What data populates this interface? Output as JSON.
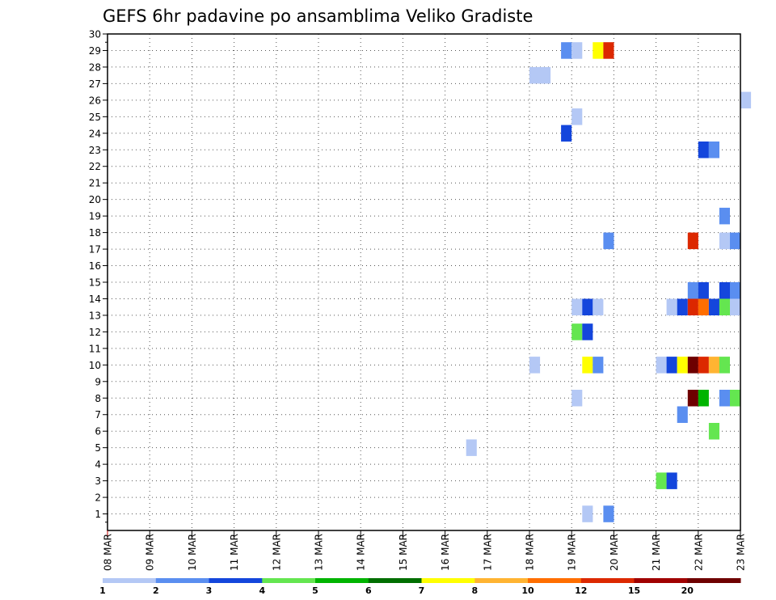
{
  "chart_data": {
    "type": "heatmap",
    "title": "GEFS 6hr padavine po ansamblima Veliko Gradiste",
    "xlabel": "",
    "ylabel": "",
    "x_range": [
      "08 MAR",
      "23 MAR"
    ],
    "x_step_hours": 6,
    "x_tick_labels": [
      "08 MAR",
      "09 MAR",
      "10 MAR",
      "11 MAR",
      "12 MAR",
      "13 MAR",
      "14 MAR",
      "15 MAR",
      "16 MAR",
      "17 MAR",
      "18 MAR",
      "19 MAR",
      "20 MAR",
      "21 MAR",
      "22 MAR",
      "23 MAR"
    ],
    "y_range": [
      0,
      30
    ],
    "y_tick_labels": [
      "1",
      "2",
      "3",
      "4",
      "5",
      "6",
      "7",
      "8",
      "9",
      "10",
      "11",
      "12",
      "13",
      "14",
      "15",
      "16",
      "17",
      "18",
      "19",
      "20",
      "21",
      "22",
      "23",
      "24",
      "25",
      "26",
      "27",
      "28",
      "29",
      "30"
    ],
    "grid": true,
    "colorbar": {
      "levels": [
        "1",
        "2",
        "3",
        "4",
        "5",
        "6",
        "7",
        "8",
        "10",
        "12",
        "15",
        "20"
      ],
      "colors": [
        "#b4c8f5",
        "#5a8ef0",
        "#1446dc",
        "#64e650",
        "#00b400",
        "#006e00",
        "#ffff00",
        "#ffb432",
        "#ff6e00",
        "#dc2800",
        "#a00000",
        "#6e0000"
      ]
    },
    "cells": [
      {
        "day": "18 MAR",
        "hour": 0,
        "member": 27.5,
        "bin": 0
      },
      {
        "day": "18 MAR",
        "hour": 6,
        "member": 27.5,
        "bin": 0
      },
      {
        "day": "18 MAR",
        "hour": 0,
        "member": 10,
        "bin": 0
      },
      {
        "day": "16 MAR",
        "hour": 12,
        "member": 5,
        "bin": 0
      },
      {
        "day": "18 MAR",
        "hour": 18,
        "member": 29,
        "bin": 1
      },
      {
        "day": "19 MAR",
        "hour": 0,
        "member": 29,
        "bin": 0
      },
      {
        "day": "19 MAR",
        "hour": 12,
        "member": 29,
        "bin": 6
      },
      {
        "day": "19 MAR",
        "hour": 18,
        "member": 29,
        "bin": 9
      },
      {
        "day": "19 MAR",
        "hour": 0,
        "member": 25,
        "bin": 0
      },
      {
        "day": "18 MAR",
        "hour": 18,
        "member": 24,
        "bin": 2
      },
      {
        "day": "19 MAR",
        "hour": 18,
        "member": 17.5,
        "bin": 1
      },
      {
        "day": "19 MAR",
        "hour": 0,
        "member": 13.5,
        "bin": 0
      },
      {
        "day": "19 MAR",
        "hour": 6,
        "member": 13.5,
        "bin": 2
      },
      {
        "day": "19 MAR",
        "hour": 12,
        "member": 13.5,
        "bin": 0
      },
      {
        "day": "19 MAR",
        "hour": 0,
        "member": 12,
        "bin": 3
      },
      {
        "day": "19 MAR",
        "hour": 6,
        "member": 12,
        "bin": 2
      },
      {
        "day": "19 MAR",
        "hour": 6,
        "member": 10,
        "bin": 6
      },
      {
        "day": "19 MAR",
        "hour": 12,
        "member": 10,
        "bin": 1
      },
      {
        "day": "19 MAR",
        "hour": 0,
        "member": 8,
        "bin": 0
      },
      {
        "day": "19 MAR",
        "hour": 6,
        "member": 1,
        "bin": 0
      },
      {
        "day": "19 MAR",
        "hour": 18,
        "member": 1,
        "bin": 1
      },
      {
        "day": "22 MAR",
        "hour": 0,
        "member": 23,
        "bin": 2
      },
      {
        "day": "22 MAR",
        "hour": 6,
        "member": 23,
        "bin": 1
      },
      {
        "day": "23 MAR",
        "hour": 0,
        "member": 26,
        "bin": 0
      },
      {
        "day": "22 MAR",
        "hour": 12,
        "member": 19,
        "bin": 1
      },
      {
        "day": "21 MAR",
        "hour": 18,
        "member": 17.5,
        "bin": 9
      },
      {
        "day": "22 MAR",
        "hour": 12,
        "member": 17.5,
        "bin": 0
      },
      {
        "day": "22 MAR",
        "hour": 18,
        "member": 17.5,
        "bin": 1
      },
      {
        "day": "21 MAR",
        "hour": 18,
        "member": 14.5,
        "bin": 1
      },
      {
        "day": "22 MAR",
        "hour": 0,
        "member": 14.5,
        "bin": 2
      },
      {
        "day": "22 MAR",
        "hour": 12,
        "member": 14.5,
        "bin": 2
      },
      {
        "day": "22 MAR",
        "hour": 18,
        "member": 14.5,
        "bin": 1
      },
      {
        "day": "21 MAR",
        "hour": 6,
        "member": 13.5,
        "bin": 0
      },
      {
        "day": "21 MAR",
        "hour": 12,
        "member": 13.5,
        "bin": 2
      },
      {
        "day": "21 MAR",
        "hour": 18,
        "member": 13.5,
        "bin": 9
      },
      {
        "day": "22 MAR",
        "hour": 0,
        "member": 13.5,
        "bin": 8
      },
      {
        "day": "22 MAR",
        "hour": 6,
        "member": 13.5,
        "bin": 2
      },
      {
        "day": "22 MAR",
        "hour": 12,
        "member": 13.5,
        "bin": 3
      },
      {
        "day": "22 MAR",
        "hour": 18,
        "member": 13.5,
        "bin": 0
      },
      {
        "day": "21 MAR",
        "hour": 0,
        "member": 10,
        "bin": 0
      },
      {
        "day": "21 MAR",
        "hour": 6,
        "member": 10,
        "bin": 2
      },
      {
        "day": "21 MAR",
        "hour": 12,
        "member": 10,
        "bin": 6
      },
      {
        "day": "21 MAR",
        "hour": 18,
        "member": 10,
        "bin": 11
      },
      {
        "day": "22 MAR",
        "hour": 0,
        "member": 10,
        "bin": 9
      },
      {
        "day": "22 MAR",
        "hour": 6,
        "member": 10,
        "bin": 7
      },
      {
        "day": "22 MAR",
        "hour": 12,
        "member": 10,
        "bin": 3
      },
      {
        "day": "21 MAR",
        "hour": 18,
        "member": 8,
        "bin": 11
      },
      {
        "day": "22 MAR",
        "hour": 0,
        "member": 8,
        "bin": 4
      },
      {
        "day": "22 MAR",
        "hour": 12,
        "member": 8,
        "bin": 1
      },
      {
        "day": "22 MAR",
        "hour": 18,
        "member": 8,
        "bin": 3
      },
      {
        "day": "21 MAR",
        "hour": 12,
        "member": 7,
        "bin": 1
      },
      {
        "day": "22 MAR",
        "hour": 6,
        "member": 6,
        "bin": 3
      },
      {
        "day": "21 MAR",
        "hour": 0,
        "member": 3,
        "bin": 3
      },
      {
        "day": "21 MAR",
        "hour": 6,
        "member": 3,
        "bin": 2
      }
    ]
  }
}
